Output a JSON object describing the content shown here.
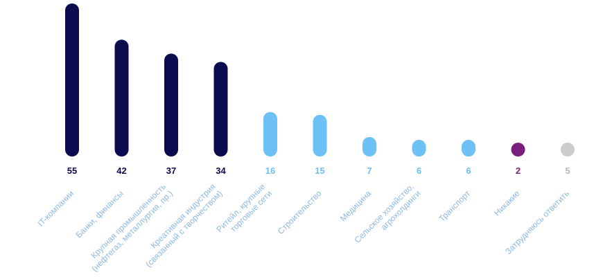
{
  "chart_data": {
    "type": "bar",
    "title": "",
    "xlabel": "",
    "ylabel": "",
    "ylim": [
      0,
      55
    ],
    "grid": false,
    "categories": [
      [
        "IT-компании"
      ],
      [
        "Банки, финансы"
      ],
      [
        "Крупная промышленность",
        "(нефтегаз, металлургия, пр.)"
      ],
      [
        "Креативная индустрия",
        "(связанный с творчеством)"
      ],
      [
        "Ритейл, крупные",
        "торговые сети"
      ],
      [
        "Строительство"
      ],
      [
        "Медицина"
      ],
      [
        "Сельское хозяйство,",
        "агрохолдинги"
      ],
      [
        "Транспорт"
      ],
      [
        "Никакие"
      ],
      [
        "Затрудняюсь ответить"
      ]
    ],
    "values": [
      55,
      42,
      37,
      34,
      16,
      15,
      7,
      6,
      6,
      2,
      5
    ],
    "colors": [
      "#0b0c4f",
      "#0b0c4f",
      "#0b0c4f",
      "#0b0c4f",
      "#6ec1f5",
      "#6ec1f5",
      "#6ec1f5",
      "#6ec1f5",
      "#6ec1f5",
      "#7a1e7c",
      "#cccccc"
    ],
    "label_colors": [
      "#0b0c4f",
      "#0b0c4f",
      "#0b0c4f",
      "#0b0c4f",
      "#6ec1f5",
      "#6ec1f5",
      "#6ec1f5",
      "#6ec1f5",
      "#6ec1f5",
      "#7a1e7c",
      "#b5b5b5"
    ]
  }
}
